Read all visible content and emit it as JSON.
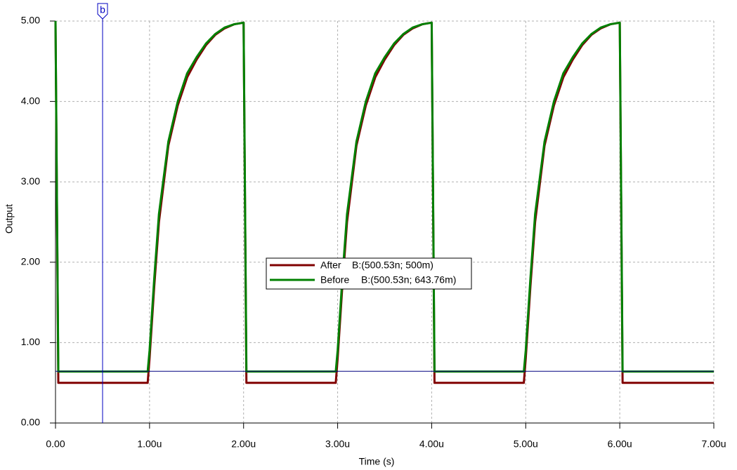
{
  "chart_data": {
    "type": "line",
    "x_label": "Time (s)",
    "y_label": "Output",
    "xlim": [
      0,
      7
    ],
    "ylim": [
      0,
      5
    ],
    "xticks": [
      {
        "value": 0,
        "label": "0.00"
      },
      {
        "value": 1,
        "label": "1.00u"
      },
      {
        "value": 2,
        "label": "2.00u"
      },
      {
        "value": 3,
        "label": "3.00u"
      },
      {
        "value": 4,
        "label": "4.00u"
      },
      {
        "value": 5,
        "label": "5.00u"
      },
      {
        "value": 6,
        "label": "6.00u"
      },
      {
        "value": 7,
        "label": "7.00u"
      }
    ],
    "yticks": [
      {
        "value": 0,
        "label": "0.00"
      },
      {
        "value": 1,
        "label": "1.00"
      },
      {
        "value": 2,
        "label": "2.00"
      },
      {
        "value": 3,
        "label": "3.00"
      },
      {
        "value": 4,
        "label": "4.00"
      },
      {
        "value": 5,
        "label": "5.00"
      }
    ],
    "grid": true,
    "cursor": {
      "label": "b",
      "x": 0.50053,
      "y": 0.64376
    },
    "x": [
      0,
      0.03,
      0.98,
      1.0,
      1.05,
      1.1,
      1.2,
      1.3,
      1.4,
      1.5,
      1.6,
      1.7,
      1.8,
      1.9,
      2.0,
      2.03,
      2.98,
      3.0,
      3.05,
      3.1,
      3.2,
      3.3,
      3.4,
      3.5,
      3.6,
      3.7,
      3.8,
      3.9,
      4.0,
      4.03,
      4.98,
      5.0,
      5.05,
      5.1,
      5.2,
      5.3,
      5.4,
      5.5,
      5.6,
      5.7,
      5.8,
      5.9,
      6.0,
      6.03,
      7.0
    ],
    "series": [
      {
        "name": "After",
        "readout": "B:(500.53n; 500m)",
        "color": "#800000",
        "values": [
          5,
          0.5,
          0.5,
          0.8,
          1.7,
          2.5,
          3.45,
          3.95,
          4.3,
          4.52,
          4.7,
          4.83,
          4.91,
          4.96,
          4.98,
          0.5,
          0.5,
          0.8,
          1.7,
          2.5,
          3.45,
          3.95,
          4.3,
          4.52,
          4.7,
          4.83,
          4.91,
          4.96,
          4.98,
          0.5,
          0.5,
          0.8,
          1.7,
          2.5,
          3.45,
          3.95,
          4.3,
          4.52,
          4.7,
          4.83,
          4.91,
          4.96,
          4.98,
          0.5,
          0.5
        ]
      },
      {
        "name": "Before",
        "readout": "B:(500.53n; 643.76m)",
        "color": "#008000",
        "values": [
          5,
          0.64,
          0.64,
          0.9,
          1.8,
          2.6,
          3.5,
          4.0,
          4.35,
          4.55,
          4.72,
          4.84,
          4.92,
          4.96,
          4.98,
          0.64,
          0.64,
          0.9,
          1.8,
          2.6,
          3.5,
          4.0,
          4.35,
          4.55,
          4.72,
          4.84,
          4.92,
          4.96,
          4.98,
          0.64,
          0.64,
          0.9,
          1.8,
          2.6,
          3.5,
          4.0,
          4.35,
          4.55,
          4.72,
          4.84,
          4.92,
          4.96,
          4.98,
          0.64,
          0.64
        ]
      }
    ]
  }
}
